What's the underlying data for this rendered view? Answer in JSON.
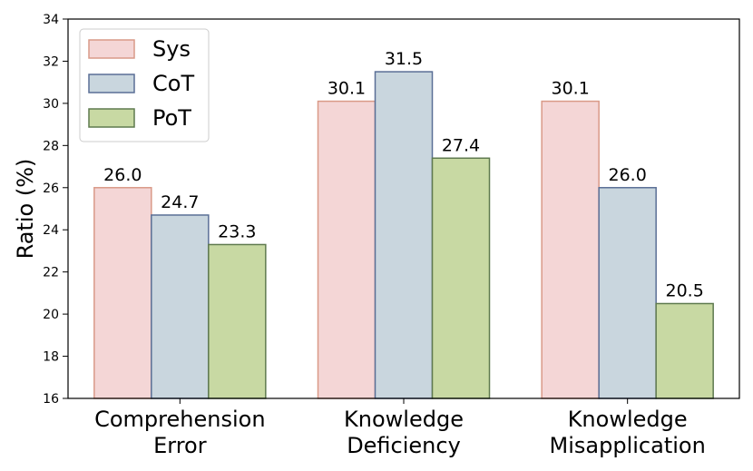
{
  "chart_data": {
    "type": "bar",
    "title": "",
    "xlabel": "",
    "ylabel": "Ratio (%)",
    "ylim": [
      16,
      34
    ],
    "yticks": [
      16,
      18,
      20,
      22,
      24,
      26,
      28,
      30,
      32,
      34
    ],
    "categories": [
      [
        "Comprehension",
        "Error"
      ],
      [
        "Knowledge",
        "Deficiency"
      ],
      [
        "Knowledge",
        "Misapplication"
      ]
    ],
    "series": [
      {
        "name": "Sys",
        "values": [
          26.0,
          30.1,
          30.1
        ],
        "labels": [
          "26.0",
          "30.1",
          "30.1"
        ],
        "fill": "#f4d6d6",
        "stroke": "#d99a88"
      },
      {
        "name": "CoT",
        "values": [
          24.7,
          31.5,
          26.0
        ],
        "labels": [
          "24.7",
          "31.5",
          "26.0"
        ],
        "fill": "#c9d6de",
        "stroke": "#5a6f96"
      },
      {
        "name": "PoT",
        "values": [
          23.3,
          27.4,
          20.5
        ],
        "labels": [
          "23.3",
          "27.4",
          "20.5"
        ],
        "fill": "#c8d9a3",
        "stroke": "#5f7a4f"
      }
    ],
    "legend": {
      "position": "top-left",
      "entries": [
        "Sys",
        "CoT",
        "PoT"
      ]
    },
    "grid": false
  }
}
